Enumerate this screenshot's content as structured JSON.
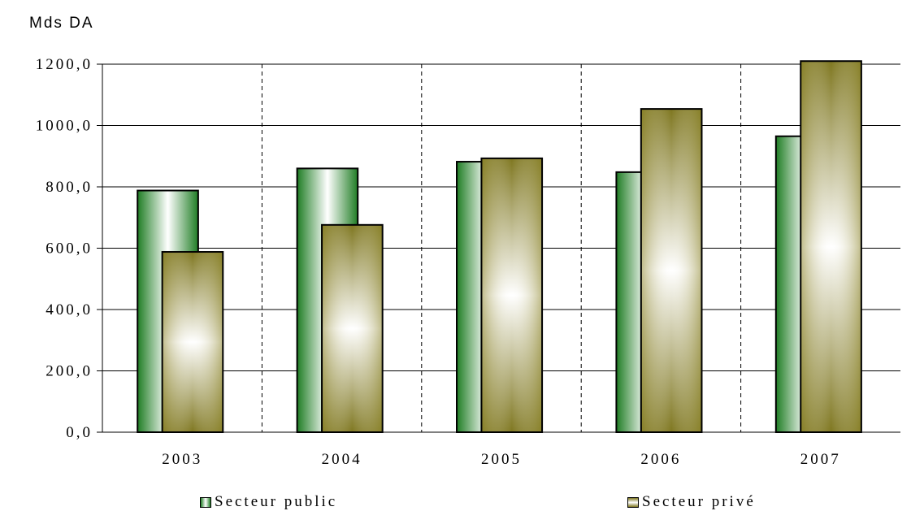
{
  "chart_data": {
    "type": "bar",
    "unit_label": "Mds  DA",
    "categories": [
      "2003",
      "2004",
      "2005",
      "2006",
      "2007"
    ],
    "series": [
      {
        "name": "Secteur public",
        "values": [
          788,
          860,
          882,
          848,
          965
        ]
      },
      {
        "name": "Secteur privé",
        "values": [
          588,
          676,
          893,
          1054,
          1210
        ]
      }
    ],
    "y_ticks": [
      "0,0",
      "200,0",
      "400,0",
      "600,0",
      "800,0",
      "1000,0",
      "1200,0"
    ],
    "ylim": [
      0,
      1200
    ],
    "grid": {
      "horizontal": "solid",
      "vertical": "dashed"
    },
    "legend_position": "bottom",
    "colors": {
      "public": "#1f7d24",
      "prive": "#7f7720"
    }
  }
}
